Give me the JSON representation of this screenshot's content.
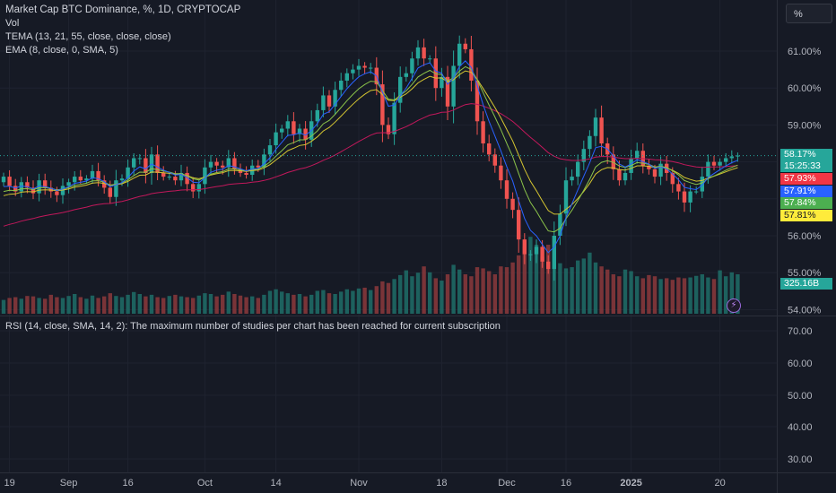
{
  "legend": {
    "title": "Market Cap BTC Dominance, %, 1D, CRYPTOCAP",
    "vol": "Vol",
    "tema": "TEMA (13, 21, 55, close, close, close)",
    "ema": "EMA (8, close, 0, SMA, 5)"
  },
  "rsi_note": "RSI (14, close, SMA, 14, 2): The maximum number of studies per chart has been reached for current subscription",
  "scale_button": "%",
  "price_badges": {
    "last": "58.17%",
    "countdown": "15:25:33",
    "red": "57.93%",
    "blue": "57.91%",
    "green": "57.84%",
    "yellow": "57.81%",
    "volume": "325.16B"
  },
  "colors": {
    "up": "#26a69a",
    "down": "#ef5350",
    "tema_blue": "#2962ff",
    "ema_red": "#c2185b",
    "line_green": "#8bc34a",
    "line_yellow": "#d4c531"
  },
  "chart_data": {
    "type": "candlestick",
    "title": "Market Cap BTC Dominance, %, 1D, CRYPTOCAP",
    "y_ticks": [
      "61.00%",
      "60.00%",
      "59.00%",
      "58.00%",
      "57.00%",
      "56.00%",
      "55.00%",
      "54.00%"
    ],
    "y_tick_values": [
      61,
      60,
      59,
      58,
      57,
      56,
      55,
      54
    ],
    "ylim": [
      53.95,
      61.95
    ],
    "x_ticks": [
      "19",
      "Sep",
      "16",
      "Oct",
      "14",
      "Nov",
      "18",
      "Dec",
      "16",
      "2025",
      "20"
    ],
    "x_tick_index": [
      1,
      11,
      21,
      34,
      46,
      60,
      74,
      85,
      95,
      106,
      121
    ],
    "rsi_ticks": [
      "70.00",
      "60.00",
      "50.00",
      "40.00",
      "30.00"
    ],
    "close": [
      57.6,
      57.35,
      57.2,
      57.45,
      57.3,
      57.15,
      57.5,
      57.3,
      57.2,
      57.1,
      57.35,
      57.45,
      57.6,
      57.5,
      57.55,
      57.75,
      57.5,
      57.3,
      57.05,
      57.5,
      57.55,
      57.85,
      58.1,
      58.1,
      57.7,
      58.2,
      57.7,
      57.6,
      57.6,
      57.5,
      57.7,
      57.4,
      57.2,
      57.4,
      57.85,
      58.0,
      57.9,
      57.85,
      58.1,
      57.8,
      57.7,
      57.65,
      57.9,
      57.85,
      58.2,
      58.45,
      58.8,
      58.9,
      59.1,
      58.75,
      58.9,
      58.6,
      59.1,
      59.4,
      59.8,
      59.5,
      59.95,
      60.2,
      60.4,
      60.5,
      60.6,
      60.55,
      60.55,
      60.1,
      59.0,
      58.75,
      59.6,
      60.3,
      60.4,
      60.8,
      61.1,
      60.8,
      60.8,
      60.0,
      60.3,
      59.5,
      60.6,
      61.2,
      61.05,
      60.2,
      59.1,
      58.5,
      58.2,
      57.9,
      57.5,
      57.0,
      56.7,
      55.9,
      55.5,
      55.5,
      55.7,
      55.3,
      55.1,
      56.0,
      56.6,
      57.5,
      57.6,
      58.0,
      58.35,
      58.7,
      59.2,
      58.5,
      58.2,
      57.8,
      57.5,
      57.7,
      58.1,
      58.3,
      57.9,
      57.8,
      57.6,
      57.95,
      57.7,
      57.4,
      57.2,
      56.9,
      57.2,
      57.2,
      57.6,
      58.0,
      57.9,
      58.0,
      58.1,
      58.15,
      58.17
    ],
    "volume_B": [
      35,
      40,
      42,
      38,
      45,
      44,
      40,
      38,
      48,
      42,
      40,
      45,
      50,
      42,
      38,
      46,
      40,
      44,
      52,
      45,
      42,
      48,
      55,
      50,
      44,
      48,
      42,
      40,
      45,
      48,
      44,
      42,
      40,
      46,
      52,
      50,
      44,
      48,
      56,
      50,
      46,
      42,
      44,
      40,
      48,
      58,
      62,
      56,
      52,
      48,
      50,
      44,
      48,
      58,
      60,
      52,
      50,
      56,
      62,
      58,
      64,
      66,
      60,
      70,
      82,
      78,
      88,
      98,
      110,
      95,
      104,
      120,
      105,
      90,
      84,
      100,
      124,
      112,
      100,
      95,
      118,
      115,
      108,
      100,
      120,
      118,
      130,
      148,
      170,
      195,
      175,
      145,
      175,
      160,
      128,
      115,
      118,
      135,
      140,
      155,
      130,
      120,
      112,
      100,
      95,
      112,
      108,
      95,
      90,
      98,
      95,
      88,
      90,
      86,
      92,
      90,
      92,
      96,
      100,
      92,
      88,
      110,
      95,
      105,
      100
    ]
  }
}
